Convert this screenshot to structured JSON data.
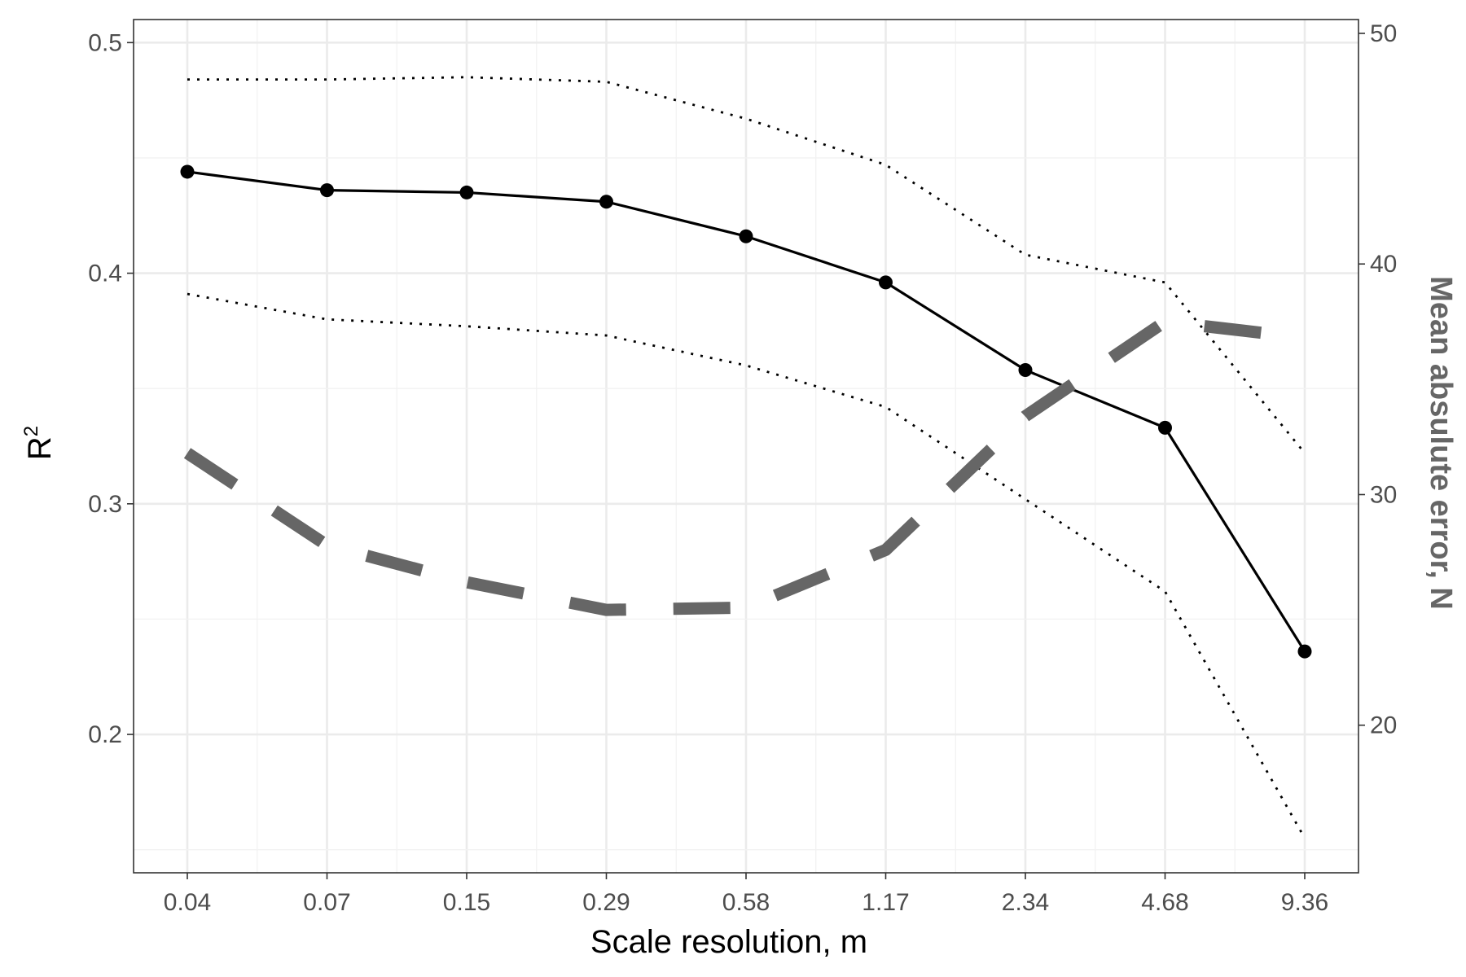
{
  "chart_data": {
    "type": "line",
    "title": "",
    "xlabel": "Scale resolution, m",
    "ylabel": "R",
    "ylabel_superscript": "2",
    "y2label": "Mean absulute error, N",
    "categories": [
      "0.04",
      "0.07",
      "0.15",
      "0.29",
      "0.58",
      "1.17",
      "2.34",
      "4.68",
      "9.36"
    ],
    "ylim": [
      0.14,
      0.51
    ],
    "yticks": [
      "0.2",
      "0.3",
      "0.4",
      "0.5"
    ],
    "y2lim": [
      13.6,
      50.6
    ],
    "y2ticks": [
      "20",
      "30",
      "40",
      "50"
    ],
    "grid": true,
    "legend": "none",
    "series": [
      {
        "axis": "left",
        "style": "solid-points",
        "color": "#000000",
        "values": [
          0.444,
          0.436,
          0.435,
          0.431,
          0.416,
          0.396,
          0.358,
          0.333,
          0.236
        ]
      },
      {
        "axis": "left",
        "style": "dotted",
        "color": "#000000",
        "values": [
          0.484,
          0.484,
          0.485,
          0.483,
          0.467,
          0.447,
          0.408,
          0.396,
          0.322
        ]
      },
      {
        "axis": "left",
        "style": "dotted",
        "color": "#000000",
        "values": [
          0.391,
          0.38,
          0.377,
          0.373,
          0.36,
          0.342,
          0.302,
          0.262,
          0.155
        ]
      },
      {
        "axis": "right",
        "style": "dashed",
        "color": "#666666",
        "values": [
          31.8,
          27.8,
          26.2,
          25.0,
          25.1,
          27.6,
          33.4,
          37.5,
          36.8
        ]
      }
    ]
  }
}
